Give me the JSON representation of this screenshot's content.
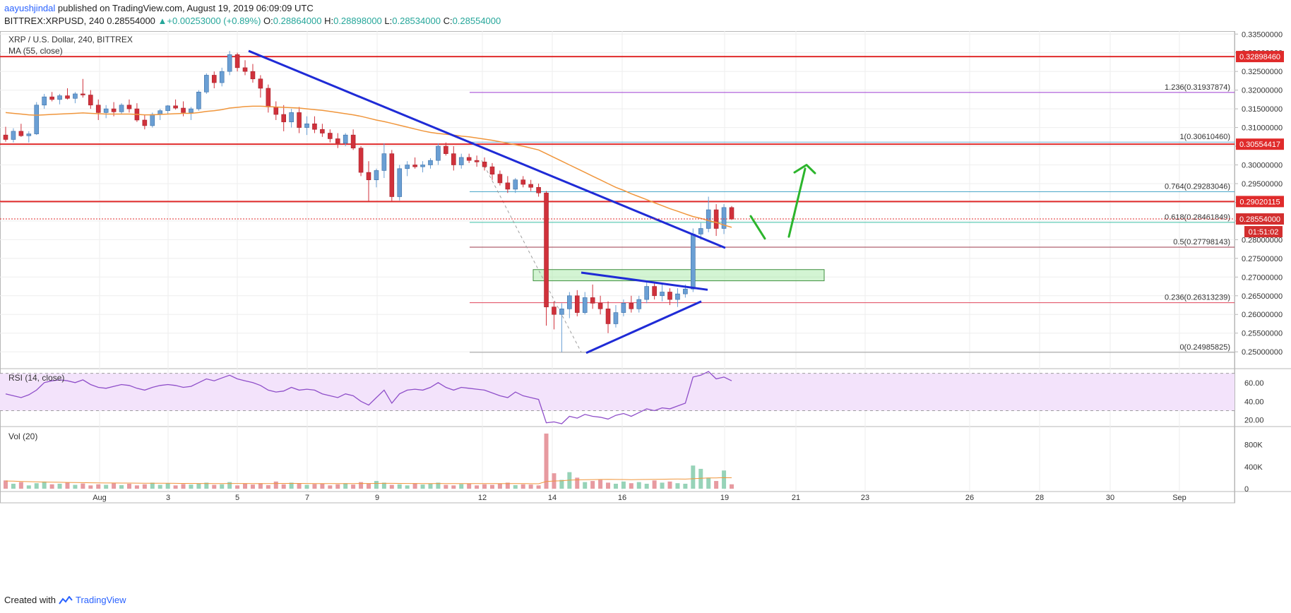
{
  "header": {
    "publisher": "aayushjindal",
    "published_text": "published on TradingView.com, August 19, 2019 06:09:09 UTC",
    "symbol_line": "BITTREX:XRPUSD, 240",
    "last": "0.28554000",
    "change_arrow": "▲",
    "change": "+0.00253000 (+0.89%)",
    "o_label": "O:",
    "o": "0.28864000",
    "h_label": "H:",
    "h": "0.28898000",
    "l_label": "L:",
    "l": "0.28534000",
    "c_label": "C:",
    "c": "0.28554000"
  },
  "footer": {
    "created_with": "Created with",
    "brand": "TradingView"
  },
  "colors": {
    "up": "#6a9fd4",
    "down": "#d0313b",
    "ma": "#f0963c",
    "trend": "#1f2bd6",
    "resistance": "#e02b2b",
    "fib_0": "#9e9e9e",
    "fib_0236": "#e0455a",
    "fib_05": "#9c3a4b",
    "fib_0618": "#3dc1a6",
    "fib_0764": "#4aa6c9",
    "fib_1": "#6bb0d6",
    "fib_1236": "#9c3ad1",
    "zone": "#9ee69e",
    "rsi": "#8f4fc9",
    "rsi_band": "#f3e3fb",
    "arrow": "#2cb52c"
  },
  "chart_data": [
    {
      "type": "candlestick",
      "title": "XRP / U.S. Dollar, 240, BITTREX",
      "indicator": "MA (55, close)",
      "x_ticks": [
        "Aug",
        "3",
        "5",
        "7",
        "9",
        "12",
        "14",
        "16",
        "19",
        "21",
        "23",
        "26",
        "28",
        "30",
        "Sep"
      ],
      "y_ticks": [
        "0.33500000",
        "0.33000000",
        "0.32500000",
        "0.32000000",
        "0.31500000",
        "0.31000000",
        "0.30500000",
        "0.30000000",
        "0.29500000",
        "0.29000000",
        "0.28500000",
        "0.28000000",
        "0.27500000",
        "0.27000000",
        "0.26500000",
        "0.26000000",
        "0.25500000",
        "0.25000000"
      ],
      "ylim": [
        0.2455,
        0.3358
      ],
      "candles": [
        [
          0.308,
          0.3102,
          0.3062,
          0.3068
        ],
        [
          0.3068,
          0.3098,
          0.306,
          0.309
        ],
        [
          0.309,
          0.311,
          0.3075,
          0.3078
        ],
        [
          0.3078,
          0.309,
          0.306,
          0.3083
        ],
        [
          0.3083,
          0.3168,
          0.308,
          0.316
        ],
        [
          0.316,
          0.319,
          0.315,
          0.3182
        ],
        [
          0.3182,
          0.3195,
          0.317,
          0.3175
        ],
        [
          0.3175,
          0.319,
          0.3162,
          0.3185
        ],
        [
          0.3185,
          0.3205,
          0.3175,
          0.3178
        ],
        [
          0.3178,
          0.3195,
          0.3165,
          0.319
        ],
        [
          0.319,
          0.323,
          0.318,
          0.3187
        ],
        [
          0.3187,
          0.32,
          0.315,
          0.316
        ],
        [
          0.316,
          0.3175,
          0.312,
          0.314
        ],
        [
          0.314,
          0.316,
          0.3125,
          0.315
        ],
        [
          0.315,
          0.3168,
          0.313,
          0.3142
        ],
        [
          0.3142,
          0.3165,
          0.3135,
          0.316
        ],
        [
          0.316,
          0.3175,
          0.314,
          0.315
        ],
        [
          0.315,
          0.3165,
          0.3115,
          0.312
        ],
        [
          0.312,
          0.3135,
          0.3095,
          0.3105
        ],
        [
          0.3105,
          0.314,
          0.31,
          0.3135
        ],
        [
          0.3135,
          0.315,
          0.312,
          0.3145
        ],
        [
          0.3145,
          0.316,
          0.3135,
          0.3158
        ],
        [
          0.3158,
          0.3175,
          0.3148,
          0.3152
        ],
        [
          0.3152,
          0.317,
          0.313,
          0.314
        ],
        [
          0.314,
          0.3155,
          0.312,
          0.315
        ],
        [
          0.315,
          0.32,
          0.3145,
          0.3195
        ],
        [
          0.3195,
          0.3245,
          0.319,
          0.324
        ],
        [
          0.324,
          0.325,
          0.3205,
          0.322
        ],
        [
          0.322,
          0.326,
          0.321,
          0.325
        ],
        [
          0.325,
          0.3305,
          0.324,
          0.3295
        ],
        [
          0.3295,
          0.33,
          0.325,
          0.326
        ],
        [
          0.326,
          0.328,
          0.324,
          0.325
        ],
        [
          0.325,
          0.327,
          0.322,
          0.323
        ],
        [
          0.323,
          0.324,
          0.318,
          0.3205
        ],
        [
          0.3205,
          0.3215,
          0.314,
          0.3155
        ],
        [
          0.3155,
          0.317,
          0.312,
          0.3135
        ],
        [
          0.3135,
          0.316,
          0.309,
          0.3115
        ],
        [
          0.3115,
          0.315,
          0.31,
          0.314
        ],
        [
          0.314,
          0.3155,
          0.3085,
          0.31
        ],
        [
          0.31,
          0.313,
          0.308,
          0.311
        ],
        [
          0.311,
          0.313,
          0.3085,
          0.3095
        ],
        [
          0.3095,
          0.311,
          0.3075,
          0.3085
        ],
        [
          0.3085,
          0.3095,
          0.306,
          0.307
        ],
        [
          0.307,
          0.3085,
          0.3045,
          0.3058
        ],
        [
          0.3058,
          0.3085,
          0.305,
          0.308
        ],
        [
          0.308,
          0.3095,
          0.304,
          0.3045
        ],
        [
          0.3045,
          0.305,
          0.297,
          0.298
        ],
        [
          0.298,
          0.301,
          0.2902,
          0.296
        ],
        [
          0.296,
          0.299,
          0.294,
          0.2985
        ],
        [
          0.2985,
          0.3058,
          0.2965,
          0.303
        ],
        [
          0.303,
          0.304,
          0.2902,
          0.2915
        ],
        [
          0.2915,
          0.3,
          0.2905,
          0.299
        ],
        [
          0.299,
          0.301,
          0.297,
          0.3
        ],
        [
          0.3,
          0.302,
          0.299,
          0.2995
        ],
        [
          0.2995,
          0.301,
          0.298,
          0.3
        ],
        [
          0.3,
          0.3018,
          0.299,
          0.3012
        ],
        [
          0.3012,
          0.3058,
          0.3,
          0.305
        ],
        [
          0.305,
          0.306,
          0.3025,
          0.303
        ],
        [
          0.303,
          0.305,
          0.2985,
          0.3
        ],
        [
          0.3,
          0.303,
          0.299,
          0.302
        ],
        [
          0.302,
          0.303,
          0.3005,
          0.3012
        ],
        [
          0.3012,
          0.3025,
          0.2995,
          0.3008
        ],
        [
          0.3008,
          0.302,
          0.2985,
          0.2995
        ],
        [
          0.2995,
          0.3005,
          0.296,
          0.2975
        ],
        [
          0.2975,
          0.2985,
          0.2945,
          0.2952
        ],
        [
          0.2952,
          0.297,
          0.2925,
          0.2935
        ],
        [
          0.2935,
          0.2965,
          0.2925,
          0.296
        ],
        [
          0.296,
          0.297,
          0.294,
          0.2948
        ],
        [
          0.2948,
          0.296,
          0.293,
          0.294
        ],
        [
          0.294,
          0.295,
          0.2915,
          0.2925
        ],
        [
          0.2925,
          0.293,
          0.257,
          0.262
        ],
        [
          0.262,
          0.2635,
          0.256,
          0.26
        ],
        [
          0.26,
          0.263,
          0.2499,
          0.2615
        ],
        [
          0.2615,
          0.266,
          0.259,
          0.265
        ],
        [
          0.265,
          0.2665,
          0.2595,
          0.2605
        ],
        [
          0.2605,
          0.266,
          0.26,
          0.2645
        ],
        [
          0.2645,
          0.268,
          0.2615,
          0.263
        ],
        [
          0.263,
          0.265,
          0.26,
          0.2615
        ],
        [
          0.2615,
          0.2635,
          0.255,
          0.2575
        ],
        [
          0.2575,
          0.2625,
          0.2565,
          0.2605
        ],
        [
          0.2605,
          0.264,
          0.2595,
          0.263
        ],
        [
          0.263,
          0.265,
          0.2605,
          0.2615
        ],
        [
          0.2615,
          0.265,
          0.2605,
          0.264
        ],
        [
          0.264,
          0.269,
          0.263,
          0.2675
        ],
        [
          0.2675,
          0.2685,
          0.264,
          0.265
        ],
        [
          0.265,
          0.268,
          0.2635,
          0.266
        ],
        [
          0.266,
          0.267,
          0.2625,
          0.264
        ],
        [
          0.264,
          0.267,
          0.262,
          0.2655
        ],
        [
          0.2655,
          0.268,
          0.2645,
          0.2668
        ],
        [
          0.2668,
          0.283,
          0.266,
          0.2815
        ],
        [
          0.2815,
          0.2845,
          0.28,
          0.283
        ],
        [
          0.283,
          0.2915,
          0.282,
          0.288
        ],
        [
          0.288,
          0.2895,
          0.281,
          0.283
        ],
        [
          0.283,
          0.2895,
          0.2815,
          0.2886
        ],
        [
          0.2886,
          0.289,
          0.2853,
          0.2855
        ]
      ],
      "ma55": [
        0.314,
        0.3138,
        0.3136,
        0.3134,
        0.3133,
        0.3134,
        0.3135,
        0.3136,
        0.3137,
        0.3138,
        0.3139,
        0.3138,
        0.3137,
        0.3136,
        0.3136,
        0.3136,
        0.3136,
        0.3135,
        0.3134,
        0.3134,
        0.3135,
        0.3136,
        0.3137,
        0.3138,
        0.3138,
        0.314,
        0.3143,
        0.3145,
        0.3148,
        0.3152,
        0.3154,
        0.3156,
        0.3157,
        0.3157,
        0.3156,
        0.3155,
        0.3154,
        0.3153,
        0.3152,
        0.315,
        0.3148,
        0.3146,
        0.3143,
        0.314,
        0.3137,
        0.3134,
        0.313,
        0.3125,
        0.312,
        0.3116,
        0.3111,
        0.3106,
        0.3101,
        0.3096,
        0.3091,
        0.3087,
        0.3084,
        0.3082,
        0.308,
        0.3077,
        0.3075,
        0.3072,
        0.3069,
        0.3066,
        0.3062,
        0.3058,
        0.3054,
        0.305,
        0.3045,
        0.304,
        0.303,
        0.302,
        0.301,
        0.3,
        0.299,
        0.298,
        0.297,
        0.296,
        0.295,
        0.294,
        0.2932,
        0.2923,
        0.2915,
        0.2907,
        0.2899,
        0.2891,
        0.2883,
        0.2876,
        0.2869,
        0.2862,
        0.2857,
        0.2851,
        0.2846,
        0.2839,
        0.2833
      ],
      "resistance_levels": [
        {
          "value": 0.3289846,
          "label": "0.32898460"
        },
        {
          "value": 0.30554417,
          "label": "0.30554417"
        },
        {
          "value": 0.29020115,
          "label": "0.29020115"
        }
      ],
      "last_price": {
        "value": 0.28554,
        "label": "0.28554000",
        "countdown": "01:51:02"
      },
      "fib_levels": [
        {
          "ratio": "1.236",
          "value": 0.31937874,
          "label": "1.236(0.31937874)"
        },
        {
          "ratio": "1",
          "value": 0.3061046,
          "label": "1(0.30610460)"
        },
        {
          "ratio": "0.764",
          "value": 0.29283046,
          "label": "0.764(0.29283046)"
        },
        {
          "ratio": "0.618",
          "value": 0.28461849,
          "label": "0.618(0.28461849)"
        },
        {
          "ratio": "0.5",
          "value": 0.27798143,
          "label": "0.5(0.27798143)"
        },
        {
          "ratio": "0.236",
          "value": 0.26313239,
          "label": "0.236(0.26313239)"
        },
        {
          "ratio": "0",
          "value": 0.24985825,
          "label": "0(0.24985825)"
        }
      ],
      "support_zone": [
        0.269,
        0.272
      ],
      "trend_lines": [
        "main bearish trend line",
        "triangle upper",
        "triangle lower"
      ],
      "arrows": [
        "pullback",
        "upside target"
      ]
    },
    {
      "type": "line",
      "title": "RSI (14, close)",
      "y_ticks": [
        "60.00",
        "40.00",
        "20.00"
      ],
      "ylim": [
        13,
        75
      ],
      "band": [
        30,
        70
      ],
      "values": [
        48,
        46,
        44,
        47,
        52,
        60,
        62,
        63,
        62,
        60,
        63,
        58,
        55,
        54,
        56,
        58,
        57,
        54,
        52,
        55,
        57,
        58,
        57,
        55,
        56,
        60,
        64,
        62,
        65,
        68,
        64,
        62,
        60,
        57,
        52,
        50,
        51,
        55,
        52,
        53,
        52,
        48,
        46,
        44,
        48,
        46,
        40,
        36,
        44,
        52,
        38,
        48,
        52,
        53,
        52,
        55,
        60,
        55,
        52,
        55,
        54,
        53,
        52,
        49,
        46,
        44,
        50,
        46,
        44,
        42,
        17,
        18,
        16,
        24,
        22,
        26,
        24,
        23,
        21,
        25,
        27,
        24,
        28,
        32,
        30,
        33,
        32,
        35,
        38,
        66,
        68,
        72,
        64,
        66,
        62
      ]
    },
    {
      "type": "bar",
      "title": "Vol (20)",
      "y_ticks": [
        "800K",
        "400K",
        "0"
      ],
      "ylim": [
        0,
        1050000
      ],
      "values": [
        150,
        90,
        120,
        60,
        100,
        130,
        80,
        90,
        110,
        70,
        95,
        60,
        80,
        70,
        100,
        65,
        90,
        60,
        80,
        110,
        70,
        95,
        60,
        85,
        75,
        90,
        110,
        70,
        80,
        120,
        60,
        90,
        75,
        100,
        65,
        130,
        80,
        110,
        90,
        70,
        85,
        95,
        60,
        80,
        100,
        75,
        120,
        90,
        140,
        110,
        70,
        80,
        60,
        100,
        75,
        90,
        110,
        70,
        60,
        85,
        95,
        60,
        80,
        70,
        90,
        110,
        65,
        80,
        75,
        60,
        1000,
        280,
        160,
        300,
        200,
        120,
        140,
        160,
        110,
        90,
        130,
        100,
        120,
        90,
        150,
        110,
        130,
        100,
        90,
        420,
        360,
        200,
        140,
        330,
        80
      ],
      "ma_values": [
        140,
        138,
        132,
        128,
        124,
        120,
        118,
        116,
        114,
        112,
        110,
        108,
        106,
        104,
        104,
        103,
        102,
        101,
        100,
        100,
        99,
        98,
        97,
        96,
        96,
        95,
        95,
        94,
        94,
        95,
        95,
        95,
        94,
        94,
        94,
        95,
        96,
        96,
        96,
        95,
        94,
        93,
        93,
        93,
        94,
        94,
        95,
        95,
        96,
        97,
        97,
        96,
        95,
        95,
        94,
        94,
        95,
        94,
        93,
        93,
        93,
        92,
        92,
        92,
        92,
        93,
        92,
        92,
        91,
        90,
        130,
        140,
        145,
        155,
        160,
        162,
        165,
        168,
        170,
        168,
        166,
        164,
        166,
        168,
        170,
        172,
        174,
        176,
        174,
        180,
        190,
        195,
        196,
        200,
        198
      ],
      "value_scale": 1000,
      "colors": {
        "up": "#97d3b8",
        "down": "#e79aa0"
      }
    }
  ]
}
